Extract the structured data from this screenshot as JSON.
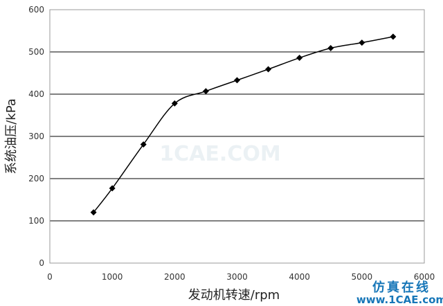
{
  "chart_data": {
    "type": "line",
    "x": [
      700,
      1000,
      1500,
      2000,
      2500,
      3000,
      3500,
      4000,
      4500,
      5000,
      5500
    ],
    "series": [
      {
        "values": [
          120,
          177,
          281,
          378,
          407,
          433,
          459,
          486,
          509,
          522,
          536
        ]
      }
    ],
    "xlabel": "发动机转速/rpm",
    "ylabel": "系统油压/kPa",
    "xlim": [
      0,
      6000
    ],
    "ylim": [
      0,
      600
    ],
    "x_ticks": [
      "0",
      "1000",
      "2000",
      "3000",
      "4000",
      "5000",
      "6000"
    ],
    "y_ticks": [
      "0",
      "100",
      "200",
      "300",
      "400",
      "500",
      "600"
    ],
    "grid": "horizontal",
    "marker": "diamond",
    "colors": {
      "line": "#000000",
      "grid": "#000000",
      "frame": "#999999"
    }
  },
  "watermark": {
    "text": "1CAE.COM",
    "brand_cn": "仿真在线",
    "brand_url": "www.1CAE.com"
  }
}
